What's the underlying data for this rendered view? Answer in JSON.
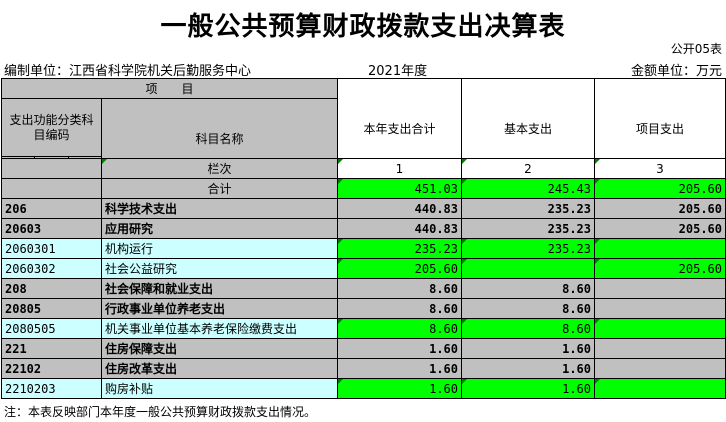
{
  "title": "一般公共预算财政拨款支出决算表",
  "form_no": "公开05表",
  "unit_label": "编制单位：江西省科学院机关后勤服务中心",
  "year": "2021年度",
  "amount_unit": "金额单位：万元",
  "headers": {
    "item": "项　　目",
    "code_group": "支出功能分类科目编码",
    "name": "科目名称",
    "total": "本年支出合计",
    "basic": "基本支出",
    "project": "项目支出",
    "lei": "类",
    "kuan": "款",
    "xiang": "项",
    "column_no": "栏次",
    "col1": "1",
    "col2": "2",
    "col3": "3"
  },
  "total_row": {
    "label": "合计",
    "total": "451.03",
    "basic": "245.43",
    "project": "205.60"
  },
  "rows": [
    {
      "code": "206",
      "name": "科学技术支出",
      "total": "440.83",
      "basic": "235.23",
      "project": "205.60"
    },
    {
      "code": "20603",
      "name": "应用研究",
      "total": "440.83",
      "basic": "235.23",
      "project": "205.60"
    },
    {
      "code": "2060301",
      "name": "机构运行",
      "total": "235.23",
      "basic": "235.23",
      "project": ""
    },
    {
      "code": "2060302",
      "name": "社会公益研究",
      "total": "205.60",
      "basic": "",
      "project": "205.60"
    },
    {
      "code": "208",
      "name": "社会保障和就业支出",
      "total": "8.60",
      "basic": "8.60",
      "project": ""
    },
    {
      "code": "20805",
      "name": "行政事业单位养老支出",
      "total": "8.60",
      "basic": "8.60",
      "project": ""
    },
    {
      "code": "2080505",
      "name": "机关事业单位基本养老保险缴费支出",
      "total": "8.60",
      "basic": "8.60",
      "project": ""
    },
    {
      "code": "221",
      "name": "住房保障支出",
      "total": "1.60",
      "basic": "1.60",
      "project": ""
    },
    {
      "code": "22102",
      "name": "住房改革支出",
      "total": "1.60",
      "basic": "1.60",
      "project": ""
    },
    {
      "code": "2210203",
      "name": "购房补贴",
      "total": "1.60",
      "basic": "1.60",
      "project": ""
    }
  ],
  "note": "注：本表反映部门本年度一般公共预算财政拨款支出情况。",
  "colors": {
    "header_gray": "#c0c0c0",
    "detail_cyan": "#ccffff",
    "value_green": "#00ff00"
  }
}
